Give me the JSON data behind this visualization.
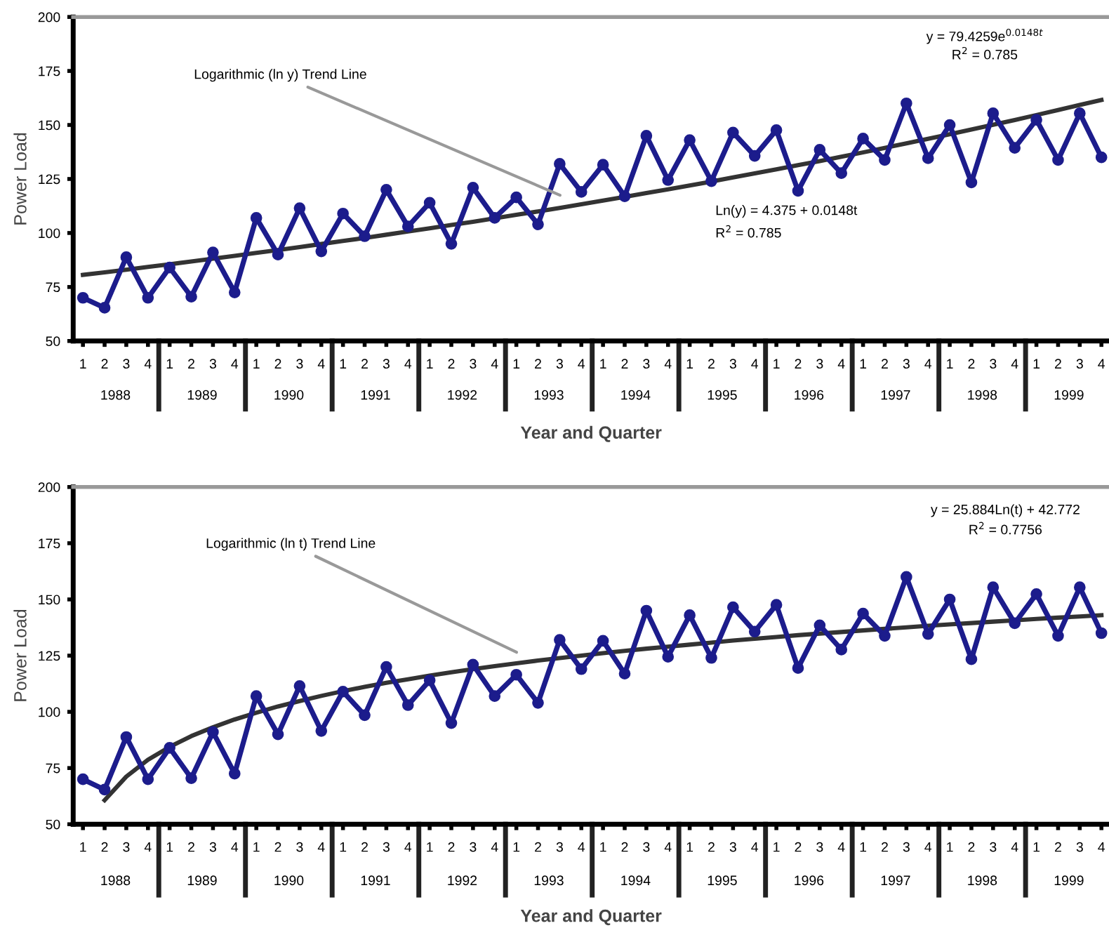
{
  "chart_data": [
    {
      "type": "line",
      "ylabel": "Power Load",
      "xlabel": "Year and Quarter",
      "categories": [
        "1",
        "2",
        "3",
        "4",
        "1",
        "2",
        "3",
        "4",
        "1",
        "2",
        "3",
        "4",
        "1",
        "2",
        "3",
        "4",
        "1",
        "2",
        "3",
        "4",
        "1",
        "2",
        "3",
        "4",
        "1",
        "2",
        "3",
        "4",
        "1",
        "2",
        "3",
        "4",
        "1",
        "2",
        "3",
        "4",
        "1",
        "2",
        "3",
        "4",
        "1",
        "2",
        "3",
        "4",
        "1",
        "2",
        "3",
        "4"
      ],
      "ylim": [
        50,
        200
      ],
      "yticks": [
        50,
        75,
        100,
        125,
        150,
        175,
        200
      ],
      "grid": false,
      "legend": false,
      "marker": "circle",
      "line_style": "solid",
      "series": [
        {
          "color": "#1c1c8c",
          "values": [
            70,
            65.4,
            88.8,
            70,
            84,
            70.5,
            91,
            72.5,
            107,
            90,
            111.5,
            91.5,
            109,
            98.5,
            120,
            103,
            114,
            95,
            121,
            107,
            116.5,
            104,
            132,
            119,
            131.6,
            117,
            145,
            124.5,
            143,
            124,
            146.5,
            135.7,
            147.6,
            119.5,
            138.5,
            127.7,
            143.7,
            133.8,
            160,
            134.6,
            150,
            123.4,
            155.4,
            139.4,
            152.4,
            133.8,
            155.4,
            135
          ]
        },
        {
          "type": "line",
          "marker": "none",
          "color": "#333333",
          "values": [
            80.6,
            81.8,
            83.0,
            84.3,
            85.5,
            86.8,
            88.1,
            89.4,
            90.8,
            92.1,
            93.5,
            94.9,
            96.3,
            97.7,
            99.2,
            100.7,
            102.2,
            103.7,
            105.2,
            106.8,
            108.4,
            110.0,
            111.6,
            113.3,
            115.0,
            116.7,
            118.5,
            120.2,
            122.0,
            123.8,
            125.7,
            127.6,
            129.5,
            131.4,
            133.3,
            135.3,
            137.3,
            139.4,
            141.5,
            143.6,
            145.7,
            147.9,
            150.1,
            152.3,
            154.6,
            156.9,
            159.3,
            161.6
          ]
        }
      ],
      "annotations": [
        "Logarithmic (ln y) Trend Line",
        "y = 79.4259e$^{0.0148t}$",
        "R$^{2}$ = 0.785",
        "Ln(y) = 4.375 + 0.0148t",
        "R$^{2}$ = 0.785",
        "1988",
        "1989",
        "1990",
        "1991",
        "1992",
        "1993",
        "1994",
        "1995",
        "1996",
        "1997",
        "1998",
        "1999"
      ]
    },
    {
      "type": "line",
      "ylabel": "Power Load",
      "xlabel": "Year and Quarter",
      "categories": [
        "1",
        "2",
        "3",
        "4",
        "1",
        "2",
        "3",
        "4",
        "1",
        "2",
        "3",
        "4",
        "1",
        "2",
        "3",
        "4",
        "1",
        "2",
        "3",
        "4",
        "1",
        "2",
        "3",
        "4",
        "1",
        "2",
        "3",
        "4",
        "1",
        "2",
        "3",
        "4",
        "1",
        "2",
        "3",
        "4",
        "1",
        "2",
        "3",
        "4",
        "1",
        "2",
        "3",
        "4",
        "1",
        "2",
        "3",
        "4"
      ],
      "ylim": [
        50,
        200
      ],
      "yticks": [
        50,
        75,
        100,
        125,
        150,
        175,
        200
      ],
      "grid": false,
      "legend": false,
      "marker": "circle",
      "line_style": "solid",
      "series": [
        {
          "color": "#1c1c8c",
          "values": [
            70,
            65.4,
            88.8,
            70,
            84,
            70.5,
            91,
            72.5,
            107,
            90,
            111.5,
            91.5,
            109,
            98.5,
            120,
            103,
            114,
            95,
            121,
            107,
            116.5,
            104,
            132,
            119,
            131.6,
            117,
            145,
            124.5,
            143,
            124,
            146.5,
            135.7,
            147.6,
            119.5,
            138.5,
            127.7,
            143.7,
            133.8,
            160,
            134.6,
            150,
            123.4,
            155.4,
            139.4,
            152.4,
            133.8,
            155.4,
            135
          ]
        },
        {
          "type": "line",
          "marker": "none",
          "color": "#333333",
          "values": [
            null,
            60.7,
            71.2,
            78.7,
            84.4,
            89.2,
            93.1,
            96.6,
            99.6,
            102.4,
            104.8,
            107.1,
            109.2,
            111.1,
            112.9,
            114.5,
            116.1,
            117.6,
            119.0,
            120.3,
            121.6,
            122.8,
            123.9,
            125.0,
            126.1,
            127.1,
            128.1,
            129.0,
            129.9,
            130.8,
            131.7,
            132.5,
            133.3,
            134.1,
            134.8,
            135.5,
            136.2,
            136.9,
            137.6,
            138.3,
            138.9,
            139.5,
            140.1,
            140.7,
            141.3,
            141.9,
            142.4,
            143.0
          ]
        }
      ],
      "annotations": [
        "Logarithmic (ln t) Trend Line",
        "y = 25.884Ln(t) + 42.772",
        "R$^{2}$ = 0.7756",
        "1988",
        "1989",
        "1990",
        "1991",
        "1992",
        "1993",
        "1994",
        "1995",
        "1996",
        "1997",
        "1998",
        "1999"
      ]
    }
  ]
}
